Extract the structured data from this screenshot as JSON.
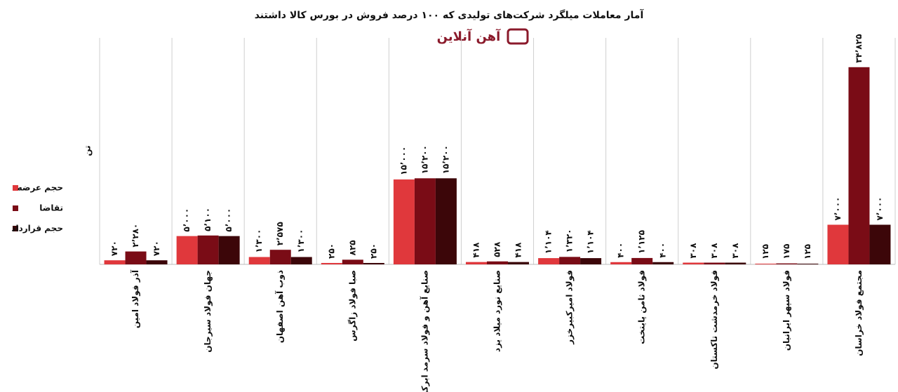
{
  "chart_data": {
    "type": "bar",
    "title": "آمار معاملات میلگرد شرکت‌های تولیدی که ۱۰۰ درصد فروش در بورس کالا داشتند",
    "subtitle": "آهن آنلاین",
    "y_label": "تن",
    "categories": [
      "آذر فولاد امین",
      "جهان فولاد سیرجان",
      "ذوب آهن اصفهان",
      "صبا فولاد زاگرس",
      "صنایع آهن و فولاد سرمد ابرکوه",
      "صنایع نورد میلاد یزد",
      "فولاد امیرکبیرخزر",
      "فولاد ثامن پایتخت",
      "فولاد خرمدشت تاکستان",
      "فولاد سپهر ایرانیان",
      "مجتمع فولاد خراسان"
    ],
    "series": [
      {
        "name": "حجم عرضه",
        "color": "#e0383c",
        "values": [
          720,
          5000,
          1300,
          250,
          15000,
          418,
          1104,
          400,
          308,
          125,
          7000
        ],
        "value_labels": [
          "۷۲۰",
          "۵٬۰۰۰",
          "۱٬۳۰۰",
          "۲۵۰",
          "۱۵٬۰۰۰",
          "۴۱۸",
          "۱٬۱۰۴",
          "۴۰۰",
          "۳۰۸",
          "۱۲۵",
          "۷٬۰۰۰"
        ]
      },
      {
        "name": "تقاضا",
        "color": "#7a0c16",
        "values": [
          2280,
          5100,
          2575,
          825,
          15200,
          528,
          1320,
          1125,
          308,
          175,
          34825
        ],
        "value_labels": [
          "۲٬۲۸۰",
          "۵٬۱۰۰",
          "۲٬۵۷۵",
          "۸۲۵",
          "۱۵٬۲۰۰",
          "۵۲۸",
          "۱٬۳۲۰",
          "۱٬۱۲۵",
          "۳۰۸",
          "۱۷۵",
          "۳۴٬۸۲۵"
        ]
      },
      {
        "name": "حجم قرارداد",
        "color": "#3c0609",
        "values": [
          720,
          5000,
          1300,
          250,
          15200,
          418,
          1104,
          400,
          308,
          125,
          7000
        ],
        "value_labels": [
          "۷۲۰",
          "۵٬۰۰۰",
          "۱٬۳۰۰",
          "۲۵۰",
          "۱۵٬۲۰۰",
          "۴۱۸",
          "۱٬۱۰۴",
          "۴۰۰",
          "۳۰۸",
          "۱۲۵",
          "۷٬۰۰۰"
        ]
      }
    ],
    "ylim": [
      0,
      40000
    ],
    "legend": "left"
  }
}
